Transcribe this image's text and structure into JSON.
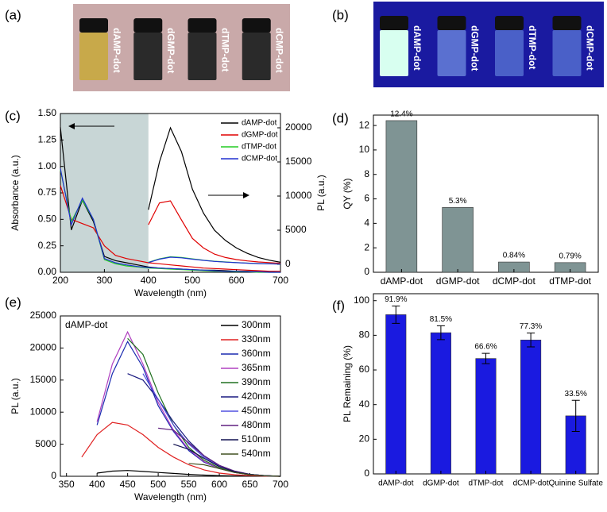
{
  "chart_data": [
    {
      "type": "image",
      "label": "(a)",
      "background": "#c9a9a9",
      "vial_labels": [
        "dAMP-dot",
        "dGMP-dot",
        "dTMP-dot",
        "dCMP-dot"
      ],
      "vial_colors": [
        "#c8a94a",
        "#2a2a2a",
        "#2a2a2a",
        "#2a2a2a"
      ],
      "label_color": "#ffffff"
    },
    {
      "type": "image",
      "label": "(b)",
      "background": "#1a1aa0",
      "vial_labels": [
        "dAMP-dot",
        "dGMP-dot",
        "dTMP-dot",
        "dCMP-dot"
      ],
      "vial_colors": [
        "#d8fff0",
        "#5a70d0",
        "#4a60c8",
        "#4a60c8"
      ],
      "label_color": "#ffffff"
    },
    {
      "type": "line",
      "label": "(c)",
      "x_label": "Wavelength (nm)",
      "y_label": "Absorbance (a.u.)",
      "y2_label": "PL (a.u.)",
      "x": [
        200,
        225,
        250,
        275,
        300,
        325,
        350,
        375,
        400,
        425,
        450,
        475,
        500,
        525,
        550,
        575,
        600,
        625,
        650,
        675,
        700
      ],
      "xlim": [
        200,
        700
      ],
      "xticks": [
        200,
        300,
        400,
        500,
        600,
        700
      ],
      "ylim": [
        0,
        1.5
      ],
      "yticks": [
        {
          "value": 0,
          "label": "0.00"
        },
        {
          "value": 0.25,
          "label": "0.25"
        },
        {
          "value": 0.5,
          "label": "0.50"
        },
        {
          "value": 0.75,
          "label": "0.75"
        },
        {
          "value": 1,
          "label": "1.00"
        },
        {
          "value": 1.25,
          "label": "1.25"
        },
        {
          "value": 1.5,
          "label": "1.50"
        }
      ],
      "y2lim": [
        -1163,
        22093
      ],
      "y2ticks": [
        0,
        5000,
        10000,
        15000,
        20000
      ],
      "shaded_xrange": [
        200,
        400
      ],
      "shade_color": "#c8d6d6",
      "series": [
        {
          "name": "dAMP-dot",
          "color": "#000000",
          "values": [
            1.37,
            0.4,
            0.68,
            0.48,
            0.15,
            0.11,
            0.09,
            0.07,
            0.05,
            0.04,
            0.035,
            0.03,
            0.025,
            0.02,
            0.02,
            0.015,
            0.01,
            0.01,
            0.005,
            0.005,
            0
          ]
        },
        {
          "name": "dGMP-dot",
          "color": "#e00000",
          "values": [
            0.82,
            0.5,
            0.46,
            0.42,
            0.25,
            0.16,
            0.13,
            0.11,
            0.09,
            0.08,
            0.07,
            0.06,
            0.05,
            0.04,
            0.035,
            0.03,
            0.025,
            0.02,
            0.015,
            0.01,
            0.01
          ]
        },
        {
          "name": "dTMP-dot",
          "color": "#22cc22",
          "values": [
            0.97,
            0.48,
            0.68,
            0.5,
            0.12,
            0.08,
            0.06,
            0.05,
            0.04,
            0.035,
            0.03,
            0.025,
            0.02,
            0.015,
            0.01,
            0.01,
            0.005,
            0.005,
            0,
            0,
            0
          ]
        },
        {
          "name": "dCMP-dot",
          "color": "#2030d0",
          "values": [
            0.98,
            0.45,
            0.7,
            0.5,
            0.13,
            0.09,
            0.07,
            0.055,
            0.045,
            0.04,
            0.035,
            0.03,
            0.025,
            0.02,
            0.015,
            0.01,
            0.01,
            0.005,
            0.005,
            0,
            0
          ]
        },
        {
          "axis": "y2",
          "color": "#000000",
          "values": [
            null,
            null,
            null,
            null,
            null,
            null,
            null,
            null,
            8000,
            15000,
            20000,
            16500,
            11000,
            7500,
            5000,
            3500,
            2400,
            1600,
            1000,
            600,
            300
          ]
        },
        {
          "axis": "y2",
          "color": "#e00000",
          "values": [
            null,
            null,
            null,
            null,
            null,
            null,
            null,
            null,
            5800,
            9000,
            9300,
            6500,
            3800,
            2400,
            1500,
            1000,
            700,
            500,
            350,
            250,
            150
          ]
        },
        {
          "axis": "y2",
          "color": "#22cc22",
          "values": [
            null,
            null,
            null,
            null,
            null,
            null,
            null,
            null,
            300,
            800,
            1100,
            1000,
            800,
            600,
            450,
            350,
            250,
            180,
            120,
            80,
            50
          ]
        },
        {
          "axis": "y2",
          "color": "#2030d0",
          "values": [
            null,
            null,
            null,
            null,
            null,
            null,
            null,
            null,
            250,
            750,
            1050,
            950,
            750,
            580,
            430,
            330,
            240,
            170,
            110,
            70,
            40
          ]
        }
      ]
    },
    {
      "type": "bar",
      "label": "(d)",
      "y_label": "QY (%)",
      "color": "#7f9494",
      "categories": [
        "dAMP-dot",
        "dGMP-dot",
        "dCMP-dot",
        "dTMP-dot"
      ],
      "values": [
        12.4,
        5.3,
        0.84,
        0.79
      ],
      "value_labels": [
        "12.4%",
        "5.3%",
        "0.84%",
        "0.79%"
      ],
      "ylim": [
        0,
        12.85
      ],
      "yticks": [
        0,
        2,
        4,
        6,
        8,
        10,
        12
      ]
    },
    {
      "type": "line",
      "label": "(e)",
      "annotation": "dAMP-dot",
      "x_label": "Wavelength (nm)",
      "y_label": "PL (a.u.)",
      "x": [
        350,
        375,
        400,
        425,
        450,
        475,
        500,
        525,
        550,
        575,
        600,
        625,
        650,
        675,
        700
      ],
      "xlim": [
        340,
        700
      ],
      "xticks": [
        350,
        400,
        450,
        500,
        550,
        600,
        650,
        700
      ],
      "ylim": [
        0,
        25000
      ],
      "yticks": [
        0,
        5000,
        10000,
        15000,
        20000,
        25000
      ],
      "series": [
        {
          "name": "300nm",
          "color": "#000000",
          "values": [
            null,
            null,
            500,
            800,
            900,
            750,
            600,
            450,
            300,
            180,
            100,
            50,
            30,
            10,
            0
          ]
        },
        {
          "name": "330nm",
          "color": "#e02020",
          "values": [
            null,
            3000,
            6500,
            8400,
            8000,
            6500,
            4500,
            3000,
            1800,
            1000,
            500,
            250,
            100,
            30,
            0
          ]
        },
        {
          "name": "360nm",
          "color": "#1a2ab0",
          "values": [
            null,
            null,
            8000,
            16000,
            21000,
            17000,
            11000,
            7000,
            4000,
            2200,
            1200,
            600,
            250,
            80,
            0
          ]
        },
        {
          "name": "365nm",
          "color": "#b040c0",
          "values": [
            null,
            null,
            8500,
            17500,
            22500,
            17500,
            11500,
            7200,
            4200,
            2300,
            1200,
            600,
            250,
            80,
            0
          ]
        },
        {
          "name": "390nm",
          "color": "#207020",
          "values": [
            null,
            null,
            null,
            null,
            21500,
            19000,
            13000,
            8000,
            4500,
            2500,
            1300,
            600,
            250,
            80,
            0
          ]
        },
        {
          "name": "420nm",
          "color": "#1a1a80",
          "values": [
            null,
            null,
            null,
            null,
            16000,
            15000,
            12000,
            8500,
            5500,
            3200,
            1700,
            800,
            300,
            100,
            0
          ]
        },
        {
          "name": "450nm",
          "color": "#5050e0",
          "values": [
            null,
            null,
            null,
            null,
            null,
            16000,
            12000,
            8000,
            5000,
            3000,
            1600,
            700,
            300,
            100,
            0
          ]
        },
        {
          "name": "480nm",
          "color": "#602080",
          "values": [
            null,
            null,
            null,
            null,
            null,
            null,
            7500,
            7200,
            5200,
            3200,
            1700,
            800,
            300,
            100,
            0
          ]
        },
        {
          "name": "510nm",
          "color": "#101050",
          "values": [
            null,
            null,
            null,
            null,
            null,
            null,
            null,
            5000,
            4200,
            2800,
            1500,
            700,
            300,
            100,
            0
          ]
        },
        {
          "name": "540nm",
          "color": "#405020",
          "values": [
            null,
            null,
            null,
            null,
            null,
            null,
            null,
            null,
            2000,
            1800,
            1200,
            600,
            250,
            80,
            0
          ]
        }
      ]
    },
    {
      "type": "bar",
      "label": "(f)",
      "y_label": "PL Remaining (%)",
      "color": "#1a1ae0",
      "categories": [
        "dAMP-dot",
        "dGMP-dot",
        "dTMP-dot",
        "dCMP-dot",
        "Quinine Sulfate"
      ],
      "values": [
        91.9,
        81.5,
        66.6,
        77.3,
        33.5
      ],
      "value_labels": [
        "91.9%",
        "81.5%",
        "66.6%",
        "77.3%",
        "33.5%"
      ],
      "errors": [
        5,
        4,
        3,
        4,
        9
      ],
      "ylim": [
        0,
        104
      ],
      "yticks": [
        0,
        20,
        40,
        60,
        80,
        100
      ]
    }
  ]
}
